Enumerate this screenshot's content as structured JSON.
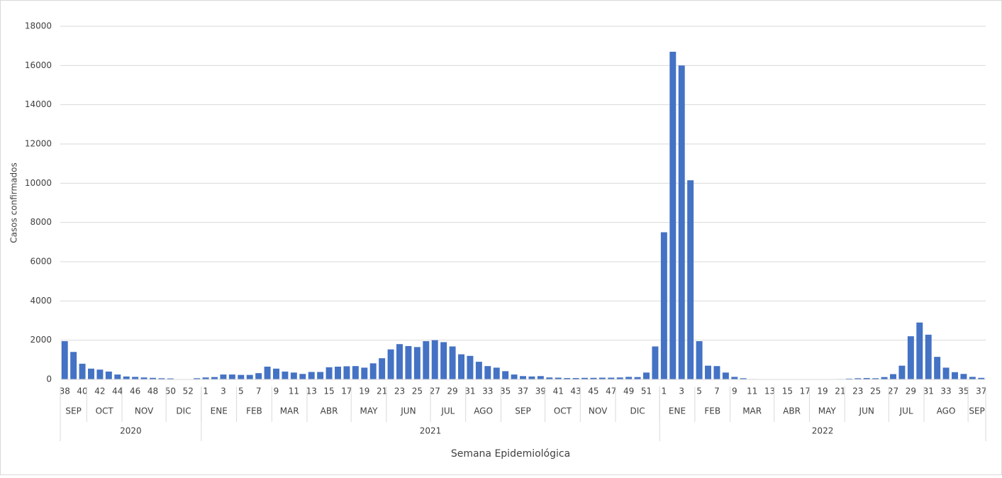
{
  "chart_data": {
    "type": "bar",
    "y_label": "Casos confirmados",
    "x_label": "Semana Epidemiológica",
    "color": "#4472c4",
    "grid": true,
    "ylim": [
      0,
      18000
    ],
    "yticks": [
      0,
      2000,
      4000,
      6000,
      8000,
      10000,
      12000,
      14000,
      16000,
      18000
    ],
    "categories": [
      "38",
      null,
      "40",
      null,
      "42",
      null,
      "44",
      null,
      "46",
      null,
      "48",
      null,
      "50",
      null,
      "52",
      null,
      "1",
      null,
      "3",
      null,
      "5",
      null,
      "7",
      null,
      "9",
      null,
      "11",
      null,
      "13",
      null,
      "15",
      null,
      "17",
      null,
      "19",
      null,
      "21",
      null,
      "23",
      null,
      "25",
      null,
      "27",
      null,
      "29",
      null,
      "31",
      null,
      "33",
      null,
      "35",
      null,
      "37",
      null,
      "39",
      null,
      "41",
      null,
      "43",
      null,
      "45",
      null,
      "47",
      null,
      "49",
      null,
      "51",
      null,
      "1",
      null,
      "3",
      null,
      "5",
      null,
      "7",
      null,
      "9",
      null,
      "11",
      null,
      "13",
      null,
      "15",
      null,
      "17",
      null,
      "19",
      null,
      "21",
      null,
      "23",
      null,
      "25",
      null,
      "27",
      null,
      "29",
      null,
      "31",
      null,
      "33",
      null,
      "35",
      null,
      "37"
    ],
    "values": [
      1950,
      1400,
      800,
      550,
      500,
      400,
      250,
      150,
      130,
      100,
      80,
      60,
      50,
      0,
      10,
      60,
      100,
      120,
      250,
      250,
      230,
      230,
      320,
      650,
      550,
      400,
      350,
      280,
      380,
      380,
      620,
      650,
      670,
      680,
      600,
      820,
      1080,
      1530,
      1800,
      1700,
      1650,
      1950,
      2000,
      1900,
      1680,
      1280,
      1200,
      900,
      680,
      600,
      420,
      250,
      170,
      150,
      170,
      100,
      90,
      70,
      70,
      80,
      80,
      90,
      90,
      100,
      130,
      120,
      350,
      1680,
      7500,
      16700,
      16000,
      10150,
      1950,
      700,
      680,
      350,
      130,
      60,
      20,
      10,
      5,
      5,
      5,
      5,
      5,
      5,
      5,
      10,
      20,
      40,
      60,
      70,
      60,
      120,
      270,
      700,
      2200,
      2900,
      2280,
      1150,
      600,
      370,
      280,
      130,
      80
    ],
    "months": [
      {
        "label": "SEP",
        "span": 3
      },
      {
        "label": "OCT",
        "span": 4
      },
      {
        "label": "NOV",
        "span": 5
      },
      {
        "label": "DIC",
        "span": 4
      },
      {
        "label": "ENE",
        "span": 4
      },
      {
        "label": "FEB",
        "span": 4
      },
      {
        "label": "MAR",
        "span": 4
      },
      {
        "label": "ABR",
        "span": 5
      },
      {
        "label": "MAY",
        "span": 4
      },
      {
        "label": "JUN",
        "span": 5
      },
      {
        "label": "JUL",
        "span": 4
      },
      {
        "label": "AGO",
        "span": 4
      },
      {
        "label": "SEP",
        "span": 5
      },
      {
        "label": "OCT",
        "span": 4
      },
      {
        "label": "NOV",
        "span": 4
      },
      {
        "label": "DIC",
        "span": 5
      },
      {
        "label": "ENE",
        "span": 4
      },
      {
        "label": "FEB",
        "span": 4
      },
      {
        "label": "MAR",
        "span": 5
      },
      {
        "label": "ABR",
        "span": 4
      },
      {
        "label": "MAY",
        "span": 4
      },
      {
        "label": "JUN",
        "span": 5
      },
      {
        "label": "JUL",
        "span": 4
      },
      {
        "label": "AGO",
        "span": 5
      },
      {
        "label": "SEP",
        "span": 2
      }
    ],
    "years": [
      {
        "label": "2020",
        "span": 16
      },
      {
        "label": "2021",
        "span": 52
      },
      {
        "label": "2022",
        "span": 37
      }
    ]
  }
}
